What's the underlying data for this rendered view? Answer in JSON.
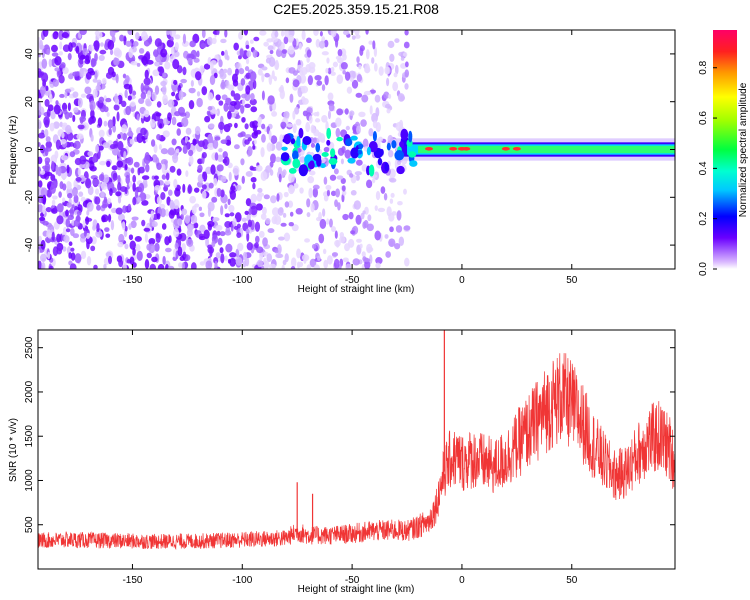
{
  "title": "C2E5.2025.359.15.21.R08",
  "chart_data": [
    {
      "type": "heatmap",
      "panel": "top",
      "xlabel": "Height of straight line (km)",
      "ylabel": "Frequency (Hz)",
      "xlim": [
        -193,
        97
      ],
      "ylim": [
        -50,
        50
      ],
      "x_ticks": [
        -150,
        -100,
        -50,
        0,
        50
      ],
      "y_ticks": [
        -40,
        -20,
        0,
        20,
        40
      ],
      "description_values": {
        "noise_region_x": [
          -193,
          -25
        ],
        "signal_onset_x": -82,
        "signal_band_hz": [
          -3,
          3
        ],
        "peak_amplitude_spots_x": [
          -15,
          -4,
          0,
          2,
          20,
          25
        ]
      },
      "colorbar": {
        "label": "Normalized spectral amplitude",
        "range": [
          0.0,
          0.95
        ],
        "ticks": [
          0.0,
          0.2,
          0.4,
          0.6,
          0.8
        ]
      }
    },
    {
      "type": "line",
      "panel": "bottom",
      "xlabel": "Height of straight line (km)",
      "ylabel": "SNR (10 * v/v)",
      "xlim": [
        -193,
        97
      ],
      "ylim": [
        0,
        2700
      ],
      "x_ticks": [
        -150,
        -100,
        -50,
        0,
        50
      ],
      "y_ticks": [
        500,
        1000,
        1500,
        2000,
        2500
      ],
      "series": [
        {
          "name": "SNR",
          "color": "#f03535",
          "x": [
            -193,
            -180,
            -160,
            -140,
            -120,
            -100,
            -90,
            -80,
            -75,
            -70,
            -60,
            -50,
            -40,
            -30,
            -25,
            -20,
            -15,
            -12,
            -10,
            -8,
            -5,
            -2,
            0,
            5,
            10,
            15,
            20,
            25,
            30,
            35,
            40,
            45,
            50,
            55,
            60,
            65,
            70,
            75,
            80,
            85,
            90,
            95,
            97
          ],
          "values": [
            320,
            330,
            320,
            310,
            315,
            330,
            340,
            350,
            420,
            380,
            380,
            400,
            430,
            440,
            430,
            480,
            540,
            700,
            900,
            1100,
            1250,
            1250,
            1200,
            1250,
            1200,
            1150,
            1250,
            1400,
            1550,
            1700,
            1850,
            1950,
            1850,
            1650,
            1400,
            1200,
            1050,
            1100,
            1300,
            1450,
            1500,
            1350,
            1150
          ],
          "spikes": [
            {
              "x": -75,
              "value": 980
            },
            {
              "x": -8,
              "value": 2700
            },
            {
              "x": 46,
              "value": 2300
            },
            {
              "x": -68,
              "value": 850
            }
          ]
        }
      ]
    }
  ]
}
